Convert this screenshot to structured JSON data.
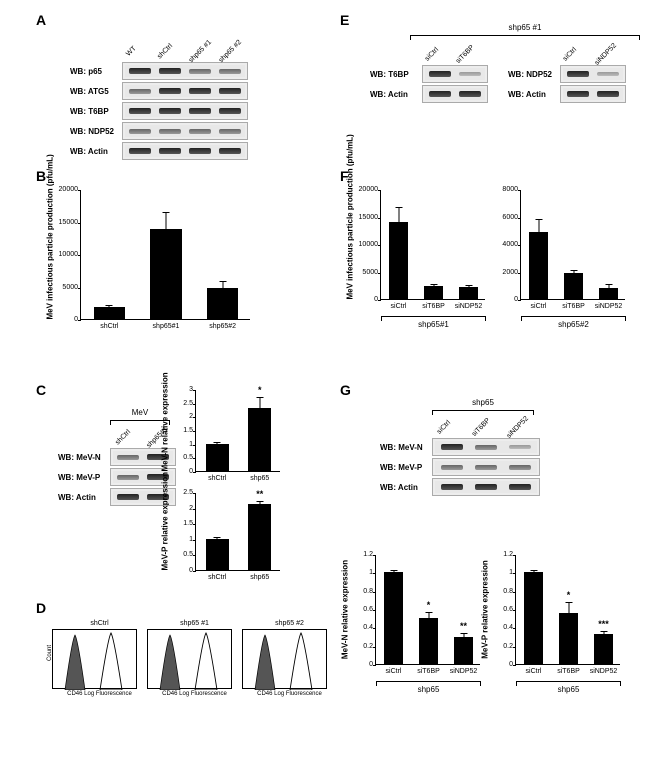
{
  "panelA": {
    "label": "A",
    "lanes": [
      "WT",
      "shCtrl",
      "shp65 #1",
      "shp65 #2"
    ],
    "rows": [
      {
        "label": "WB: p65",
        "bands": [
          "band",
          "band",
          "light",
          "light"
        ]
      },
      {
        "label": "WB: ATG5",
        "bands": [
          "light",
          "band",
          "band",
          "band"
        ]
      },
      {
        "label": "WB: T6BP",
        "bands": [
          "band",
          "band",
          "band",
          "band"
        ]
      },
      {
        "label": "WB: NDP52",
        "bands": [
          "light",
          "light",
          "light",
          "light"
        ]
      },
      {
        "label": "WB: Actin",
        "bands": [
          "band",
          "band",
          "band",
          "band"
        ]
      }
    ]
  },
  "panelB": {
    "label": "B",
    "type": "bar",
    "ylabel": "MeV infectious particle production\n(pfu/mL)",
    "categories": [
      "shCtrl",
      "shp65#1",
      "shp65#2"
    ],
    "values": [
      1900,
      13800,
      4800
    ],
    "errors": [
      300,
      2600,
      1000
    ],
    "ylim": [
      0,
      20000
    ],
    "yticks": [
      0,
      5000,
      10000,
      15000,
      20000
    ],
    "bar_color": "#000000",
    "width": 180,
    "height": 130
  },
  "panelC": {
    "label": "C",
    "blot": {
      "top_bracket": "MeV",
      "lanes": [
        "shCtrl",
        "shp65#1"
      ],
      "rows": [
        {
          "label": "WB: MeV-N",
          "bands": [
            "light",
            "band"
          ]
        },
        {
          "label": "WB: MeV-P",
          "bands": [
            "light",
            "band"
          ]
        },
        {
          "label": "WB: Actin",
          "bands": [
            "band",
            "band"
          ]
        }
      ]
    },
    "charts": [
      {
        "ylabel": "MeV-N relative expression",
        "categories": [
          "shCtrl",
          "shp65"
        ],
        "values": [
          1.0,
          2.3
        ],
        "errors": [
          0.05,
          0.4
        ],
        "sig": [
          "",
          "*"
        ],
        "ylim": [
          0,
          3
        ],
        "yticks": [
          0,
          0.5,
          1,
          1.5,
          2,
          2.5,
          3
        ]
      },
      {
        "ylabel": "MeV-P relative expression",
        "categories": [
          "shCtrl",
          "shp65"
        ],
        "values": [
          1.0,
          2.1
        ],
        "errors": [
          0.05,
          0.1
        ],
        "sig": [
          "",
          "**"
        ],
        "ylim": [
          0,
          2.5
        ],
        "yticks": [
          0,
          0.5,
          1,
          1.5,
          2,
          2.5
        ]
      }
    ]
  },
  "panelD": {
    "label": "D",
    "xaxis": "CD46 Log Fluorescence",
    "yaxis": "Count",
    "plots": [
      "shCtrl",
      "shp65 #1",
      "shp65 #2"
    ]
  },
  "panelE": {
    "label": "E",
    "top_bracket": "shp65 #1",
    "groups": [
      {
        "lanes": [
          "siCtrl",
          "siT6BP"
        ],
        "rows": [
          {
            "label": "WB: T6BP",
            "bands": [
              "band",
              "faint"
            ]
          },
          {
            "label": "WB: Actin",
            "bands": [
              "band",
              "band"
            ]
          }
        ]
      },
      {
        "lanes": [
          "siCtrl",
          "siNDP52"
        ],
        "rows": [
          {
            "label": "WB: NDP52",
            "bands": [
              "band",
              "faint"
            ]
          },
          {
            "label": "WB: Actin",
            "bands": [
              "band",
              "band"
            ]
          }
        ]
      }
    ]
  },
  "panelF": {
    "label": "F",
    "charts": [
      {
        "ylabel": "MeV infectious particle production\n(pfu/mL)",
        "bracket": "shp65#1",
        "categories": [
          "siCtrl",
          "siT6BP",
          "siNDP52"
        ],
        "values": [
          14000,
          2400,
          2100
        ],
        "errors": [
          2700,
          400,
          400
        ],
        "ylim": [
          0,
          20000
        ],
        "yticks": [
          0,
          5000,
          10000,
          15000,
          20000
        ]
      },
      {
        "ylabel": "",
        "bracket": "shp65#2",
        "categories": [
          "siCtrl",
          "siT6BP",
          "siNDP52"
        ],
        "values": [
          4900,
          1900,
          800
        ],
        "errors": [
          900,
          200,
          300
        ],
        "ylim": [
          0,
          8000
        ],
        "yticks": [
          0,
          2000,
          4000,
          6000,
          8000
        ]
      }
    ]
  },
  "panelG": {
    "label": "G",
    "top_bracket": "shp65",
    "blot": {
      "lanes": [
        "siCtrl",
        "siT6BP",
        "siNDP52"
      ],
      "rows": [
        {
          "label": "WB: MeV-N",
          "bands": [
            "band",
            "light",
            "faint"
          ]
        },
        {
          "label": "WB: MeV-P",
          "bands": [
            "light",
            "light",
            "light"
          ]
        },
        {
          "label": "WB: Actin",
          "bands": [
            "band",
            "band",
            "band"
          ]
        }
      ]
    },
    "charts": [
      {
        "ylabel": "MeV-N relative expression",
        "bracket": "shp65",
        "categories": [
          "siCtrl",
          "siT6BP",
          "siNDP52"
        ],
        "values": [
          1.0,
          0.5,
          0.3
        ],
        "errors": [
          0.03,
          0.07,
          0.04
        ],
        "sig": [
          "",
          "*",
          "**"
        ],
        "ylim": [
          0,
          1.2
        ],
        "yticks": [
          0,
          0.2,
          0.4,
          0.6,
          0.8,
          1,
          1.2
        ]
      },
      {
        "ylabel": "MeV-P relative expression",
        "bracket": "shp65",
        "categories": [
          "siCtrl",
          "siT6BP",
          "siNDP52"
        ],
        "values": [
          1.0,
          0.56,
          0.33
        ],
        "errors": [
          0.03,
          0.12,
          0.03
        ],
        "sig": [
          "",
          "*",
          "***"
        ],
        "ylim": [
          0,
          1.2
        ],
        "yticks": [
          0,
          0.2,
          0.4,
          0.6,
          0.8,
          1,
          1.2
        ]
      }
    ]
  }
}
